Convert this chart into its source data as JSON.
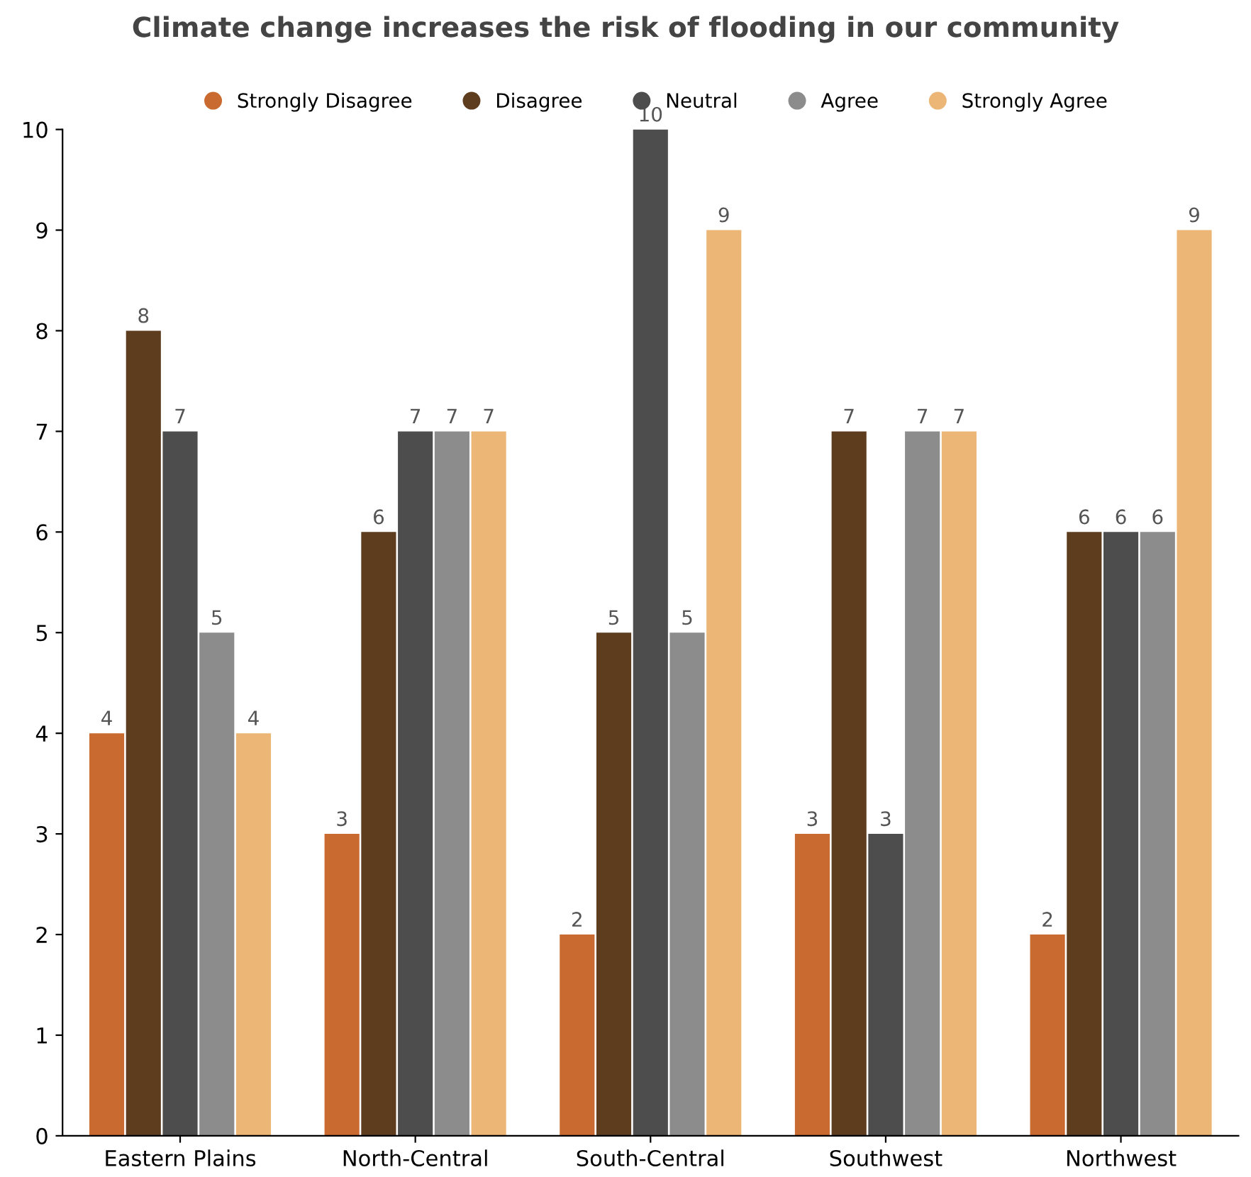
{
  "chart_data": {
    "type": "bar",
    "title": "Climate change increases the risk of flooding in our community",
    "categories": [
      "Eastern Plains",
      "North-Central",
      "South-Central",
      "Southwest",
      "Northwest"
    ],
    "series": [
      {
        "name": "Strongly Disagree",
        "color": "#c96a30",
        "values": [
          4,
          3,
          2,
          3,
          2
        ]
      },
      {
        "name": "Disagree",
        "color": "#5e3d1f",
        "values": [
          8,
          6,
          5,
          7,
          6
        ]
      },
      {
        "name": "Neutral",
        "color": "#4d4d4d",
        "values": [
          7,
          7,
          10,
          3,
          6
        ]
      },
      {
        "name": "Agree",
        "color": "#8c8c8c",
        "values": [
          5,
          7,
          5,
          7,
          6
        ]
      },
      {
        "name": "Strongly Agree",
        "color": "#ebb676",
        "values": [
          4,
          7,
          9,
          7,
          9
        ]
      }
    ],
    "ylim": [
      0,
      10
    ],
    "yticks": [
      0,
      1,
      2,
      3,
      4,
      5,
      6,
      7,
      8,
      9,
      10
    ],
    "grid": false,
    "legend": "top",
    "data_labels": true
  }
}
